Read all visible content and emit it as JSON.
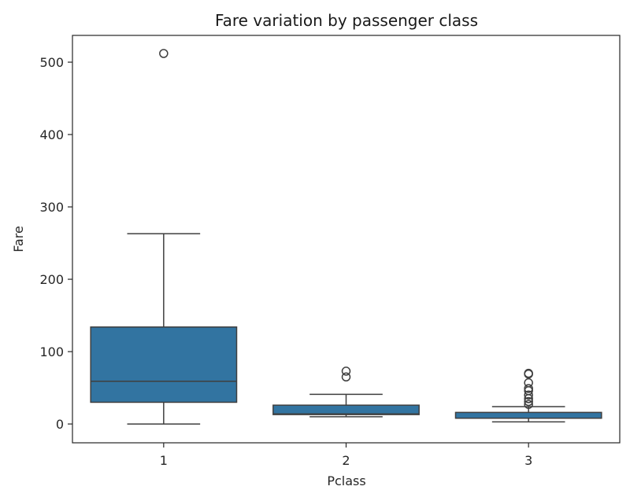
{
  "chart_data": {
    "type": "box",
    "title": "Fare variation by passenger class",
    "xlabel": "Pclass",
    "ylabel": "Fare",
    "categories": [
      "1",
      "2",
      "3"
    ],
    "ylim": [
      -26,
      537
    ],
    "yticks": [
      0,
      100,
      200,
      300,
      400,
      500
    ],
    "grid": false,
    "legend": null,
    "box_color": "#3274a1",
    "edge_color": "#3f3f3f",
    "boxes": [
      {
        "category": "1",
        "whisker_low": 0,
        "q1": 30,
        "median": 59,
        "q3": 134,
        "whisker_high": 263,
        "outliers": [
          512
        ]
      },
      {
        "category": "2",
        "whisker_low": 10,
        "q1": 13,
        "median": 14,
        "q3": 26,
        "whisker_high": 41,
        "outliers": [
          65,
          73
        ]
      },
      {
        "category": "3",
        "whisker_low": 3,
        "q1": 8,
        "median": 8,
        "q3": 16,
        "whisker_high": 24,
        "outliers": [
          27,
          31,
          35,
          40,
          46,
          49,
          57,
          69,
          70
        ]
      }
    ]
  }
}
